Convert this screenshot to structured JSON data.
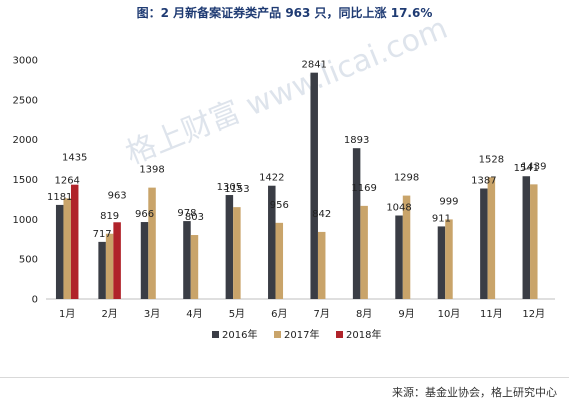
{
  "title": "图：2 月新备案证券类产品 963 只，同比上涨 17.6%",
  "source": "来源：基金业协会，格上研究中心",
  "watermark": "格上财富 www.licai.com",
  "chart_data": {
    "type": "bar",
    "categories": [
      "1月",
      "2月",
      "3月",
      "4月",
      "5月",
      "6月",
      "7月",
      "8月",
      "9月",
      "10月",
      "11月",
      "12月"
    ],
    "series": [
      {
        "name": "2016年",
        "color": "#3a3d45",
        "values": [
          1181,
          717,
          966,
          978,
          1305,
          1422,
          2841,
          1893,
          1048,
          911,
          1387,
          1541
        ]
      },
      {
        "name": "2017年",
        "color": "#c9a46a",
        "values": [
          1264,
          819,
          1398,
          803,
          1153,
          956,
          842,
          1169,
          1298,
          999,
          1528,
          1439
        ]
      },
      {
        "name": "2018年",
        "color": "#b0232a",
        "values": [
          1435,
          963,
          null,
          null,
          null,
          null,
          null,
          null,
          null,
          null,
          null,
          null
        ]
      }
    ],
    "ylim": [
      0,
      3000
    ],
    "yticks": [
      0,
      500,
      1000,
      1500,
      2000,
      2500,
      3000
    ],
    "grid": false,
    "legend_position": "bottom-center"
  }
}
